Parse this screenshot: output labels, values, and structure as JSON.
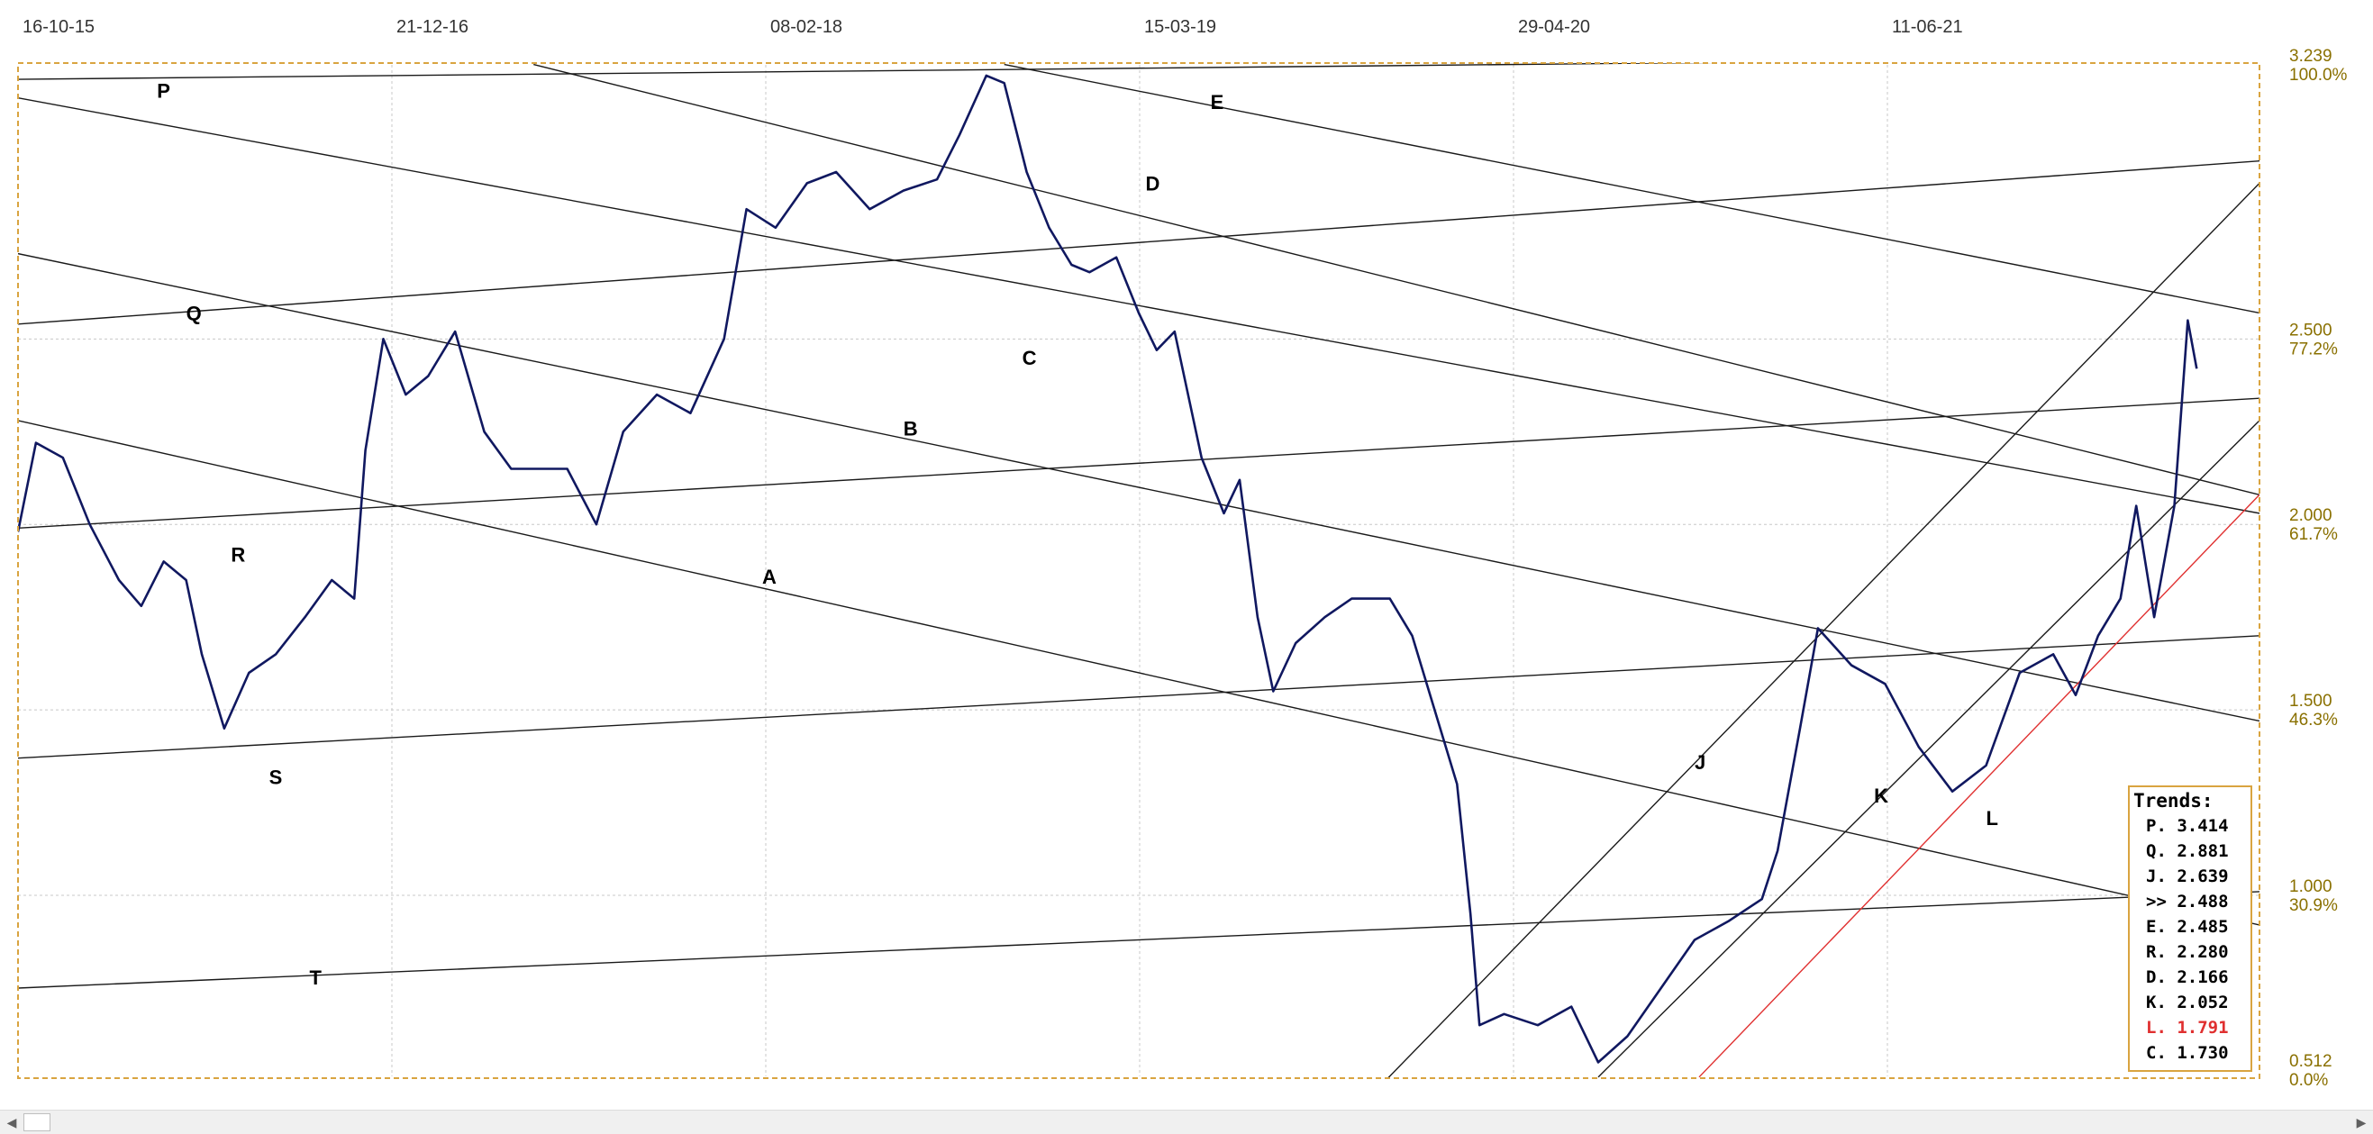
{
  "chart_data": {
    "type": "line",
    "title": "",
    "x_tick_labels": [
      "16-10-15",
      "21-12-16",
      "08-02-18",
      "15-03-19",
      "29-04-20",
      "11-06-21"
    ],
    "y_ticks": [
      {
        "price": "3.239",
        "pct": "100.0%"
      },
      {
        "price": "2.500",
        "pct": "77.2%"
      },
      {
        "price": "2.000",
        "pct": "61.7%"
      },
      {
        "price": "1.500",
        "pct": "46.3%"
      },
      {
        "price": "1.000",
        "pct": "30.9%"
      },
      {
        "price": "0.512",
        "pct": "0.0%"
      }
    ],
    "ylim": [
      0.512,
      3.239
    ],
    "xlim": [
      0,
      1000
    ],
    "grid": true,
    "series": [
      {
        "color": "#101860",
        "points": [
          [
            0,
            1.98
          ],
          [
            8,
            2.22
          ],
          [
            20,
            2.18
          ],
          [
            32,
            2.0
          ],
          [
            45,
            1.85
          ],
          [
            55,
            1.78
          ],
          [
            65,
            1.9
          ],
          [
            75,
            1.85
          ],
          [
            82,
            1.65
          ],
          [
            92,
            1.45
          ],
          [
            103,
            1.6
          ],
          [
            115,
            1.65
          ],
          [
            128,
            1.75
          ],
          [
            140,
            1.85
          ],
          [
            150,
            1.8
          ],
          [
            155,
            2.2
          ],
          [
            163,
            2.5
          ],
          [
            173,
            2.35
          ],
          [
            183,
            2.4
          ],
          [
            195,
            2.52
          ],
          [
            208,
            2.25
          ],
          [
            220,
            2.15
          ],
          [
            230,
            2.15
          ],
          [
            245,
            2.15
          ],
          [
            258,
            2.0
          ],
          [
            270,
            2.25
          ],
          [
            285,
            2.35
          ],
          [
            300,
            2.3
          ],
          [
            315,
            2.5
          ],
          [
            325,
            2.85
          ],
          [
            338,
            2.8
          ],
          [
            352,
            2.92
          ],
          [
            365,
            2.95
          ],
          [
            380,
            2.85
          ],
          [
            395,
            2.9
          ],
          [
            410,
            2.93
          ],
          [
            420,
            3.05
          ],
          [
            432,
            3.21
          ],
          [
            440,
            3.19
          ],
          [
            450,
            2.95
          ],
          [
            460,
            2.8
          ],
          [
            470,
            2.7
          ],
          [
            478,
            2.68
          ],
          [
            490,
            2.72
          ],
          [
            500,
            2.57
          ],
          [
            508,
            2.47
          ],
          [
            516,
            2.52
          ],
          [
            528,
            2.18
          ],
          [
            538,
            2.03
          ],
          [
            545,
            2.12
          ],
          [
            553,
            1.75
          ],
          [
            560,
            1.55
          ],
          [
            570,
            1.68
          ],
          [
            583,
            1.75
          ],
          [
            595,
            1.8
          ],
          [
            603,
            1.8
          ],
          [
            612,
            1.8
          ],
          [
            622,
            1.7
          ],
          [
            632,
            1.5
          ],
          [
            642,
            1.3
          ],
          [
            648,
            0.95
          ],
          [
            652,
            0.65
          ],
          [
            663,
            0.68
          ],
          [
            678,
            0.65
          ],
          [
            693,
            0.7
          ],
          [
            705,
            0.55
          ],
          [
            718,
            0.62
          ],
          [
            733,
            0.75
          ],
          [
            748,
            0.88
          ],
          [
            763,
            0.93
          ],
          [
            778,
            0.99
          ],
          [
            785,
            1.12
          ],
          [
            795,
            1.45
          ],
          [
            803,
            1.72
          ],
          [
            818,
            1.62
          ],
          [
            833,
            1.57
          ],
          [
            848,
            1.4
          ],
          [
            863,
            1.28
          ],
          [
            878,
            1.35
          ],
          [
            893,
            1.6
          ],
          [
            908,
            1.65
          ],
          [
            918,
            1.54
          ],
          [
            928,
            1.7
          ],
          [
            938,
            1.8
          ],
          [
            945,
            2.05
          ],
          [
            953,
            1.75
          ],
          [
            962,
            2.05
          ],
          [
            968,
            2.55
          ],
          [
            972,
            2.42
          ]
        ]
      }
    ],
    "trend_lines": [
      {
        "name": "P",
        "points": [
          [
            0,
            3.2
          ],
          [
            1000,
            3.26
          ]
        ]
      },
      {
        "name": "Q",
        "points": [
          [
            0,
            2.54
          ],
          [
            1000,
            2.98
          ]
        ]
      },
      {
        "name": "R",
        "points": [
          [
            0,
            1.99
          ],
          [
            1000,
            2.34
          ]
        ]
      },
      {
        "name": "S",
        "points": [
          [
            0,
            1.37
          ],
          [
            1000,
            1.7
          ]
        ]
      },
      {
        "name": "T",
        "points": [
          [
            0,
            0.75
          ],
          [
            1000,
            1.01
          ]
        ]
      },
      {
        "name": "A",
        "points": [
          [
            0,
            2.28
          ],
          [
            1000,
            0.92
          ]
        ]
      },
      {
        "name": "B",
        "points": [
          [
            0,
            2.73
          ],
          [
            1000,
            1.47
          ]
        ]
      },
      {
        "name": "C",
        "points": [
          [
            0,
            3.15
          ],
          [
            1000,
            2.03
          ]
        ]
      },
      {
        "name": "D",
        "points": [
          [
            230,
            3.24
          ],
          [
            1000,
            2.08
          ]
        ]
      },
      {
        "name": "E",
        "points": [
          [
            440,
            3.24
          ],
          [
            1000,
            2.57
          ]
        ]
      },
      {
        "name": "J",
        "points": [
          [
            610,
            0.5
          ],
          [
            1000,
            2.92
          ]
        ]
      },
      {
        "name": "K",
        "points": [
          [
            705,
            0.51
          ],
          [
            1000,
            2.28
          ]
        ]
      },
      {
        "name": "L",
        "points": [
          [
            750,
            0.51
          ],
          [
            1000,
            2.08
          ]
        ],
        "color": "#e03030"
      }
    ],
    "line_labels": [
      {
        "name": "P",
        "x": 62,
        "y": 3.15
      },
      {
        "name": "Q",
        "x": 75,
        "y": 2.55
      },
      {
        "name": "R",
        "x": 95,
        "y": 1.9
      },
      {
        "name": "S",
        "x": 112,
        "y": 1.3
      },
      {
        "name": "T",
        "x": 130,
        "y": 0.76
      },
      {
        "name": "A",
        "x": 332,
        "y": 1.84
      },
      {
        "name": "B",
        "x": 395,
        "y": 2.24
      },
      {
        "name": "C",
        "x": 448,
        "y": 2.43
      },
      {
        "name": "D",
        "x": 503,
        "y": 2.9
      },
      {
        "name": "E",
        "x": 532,
        "y": 3.12
      },
      {
        "name": "J",
        "x": 748,
        "y": 1.34
      },
      {
        "name": "K",
        "x": 828,
        "y": 1.25
      },
      {
        "name": "L",
        "x": 878,
        "y": 1.19,
        "color": "#e03030"
      }
    ],
    "trends_panel": {
      "title": "Trends:",
      "rows": [
        {
          "label": "P.",
          "value": "3.414",
          "color": "#000000"
        },
        {
          "label": "Q.",
          "value": "2.881",
          "color": "#000000"
        },
        {
          "label": "J.",
          "value": "2.639",
          "color": "#000000"
        },
        {
          "label": ">>",
          "value": "2.488",
          "color": "#000000"
        },
        {
          "label": "E.",
          "value": "2.485",
          "color": "#000000"
        },
        {
          "label": "R.",
          "value": "2.280",
          "color": "#000000"
        },
        {
          "label": "D.",
          "value": "2.166",
          "color": "#000000"
        },
        {
          "label": "K.",
          "value": "2.052",
          "color": "#000000"
        },
        {
          "label": "L.",
          "value": "1.791",
          "color": "#e03030"
        },
        {
          "label": "C.",
          "value": "1.730",
          "color": "#000000"
        }
      ]
    }
  },
  "scrollbar": {
    "left_arrow_icon": "chevron-left-icon",
    "right_arrow_icon": "chevron-right-icon",
    "left_arrow": "◀",
    "right_arrow": "▶"
  }
}
